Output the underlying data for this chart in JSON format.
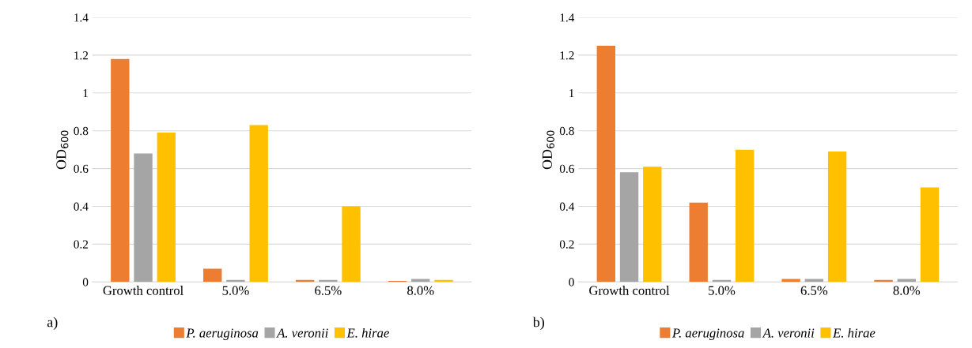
{
  "chart_data": [
    {
      "type": "bar",
      "ylabel": "OD$_{600}$",
      "categories": [
        "Growth control",
        "5.0%",
        "6.5%",
        "8.0%"
      ],
      "series": [
        {
          "name": "P. aeruginosa",
          "color": "#ed7d31",
          "values": [
            1.18,
            0.07,
            0.01,
            0.005
          ]
        },
        {
          "name": "A. veronii",
          "color": "#a5a5a5",
          "values": [
            0.68,
            0.01,
            0.01,
            0.015
          ]
        },
        {
          "name": "E. hirae",
          "color": "#ffc000",
          "values": [
            0.79,
            0.83,
            0.4,
            0.01
          ]
        }
      ],
      "ylim": [
        0,
        1.4
      ],
      "yticks": [
        0,
        0.2,
        0.4,
        0.6,
        0.8,
        1,
        1.2,
        1.4
      ],
      "grid": "y",
      "legend": "bottom",
      "annotations": [
        "a)"
      ]
    },
    {
      "type": "bar",
      "ylabel": "OD$_{600}$",
      "categories": [
        "Growth control",
        "5.0%",
        "6.5%",
        "8.0%"
      ],
      "series": [
        {
          "name": "P. aeruginosa",
          "color": "#ed7d31",
          "values": [
            1.25,
            0.42,
            0.015,
            0.01
          ]
        },
        {
          "name": "A. veronii",
          "color": "#a5a5a5",
          "values": [
            0.58,
            0.01,
            0.015,
            0.015
          ]
        },
        {
          "name": "E. hirae",
          "color": "#ffc000",
          "values": [
            0.61,
            0.7,
            0.69,
            0.5
          ]
        }
      ],
      "ylim": [
        0,
        1.4
      ],
      "yticks": [
        0,
        0.2,
        0.4,
        0.6,
        0.8,
        1,
        1.2,
        1.4
      ],
      "grid": "y",
      "legend": "bottom",
      "annotations": [
        "b)"
      ]
    }
  ]
}
